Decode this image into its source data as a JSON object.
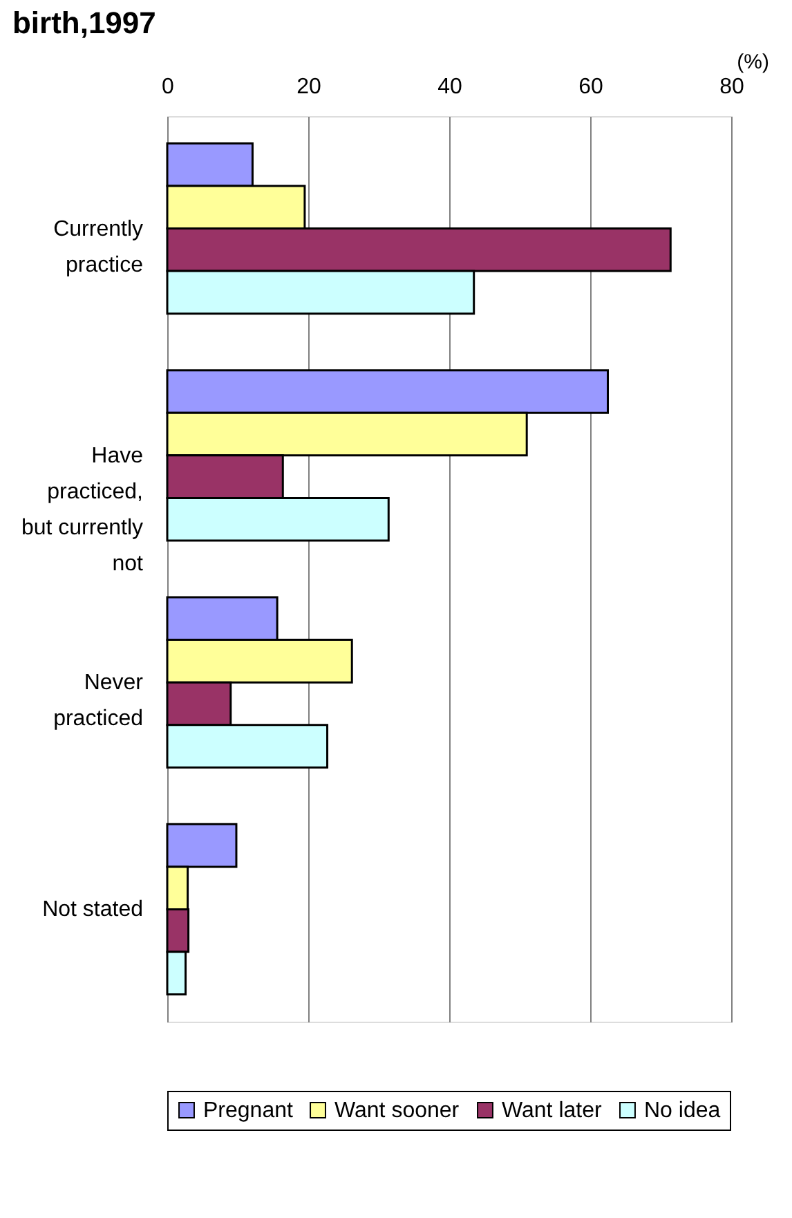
{
  "chart_data": {
    "type": "bar",
    "orientation": "horizontal",
    "title": "birth,1997",
    "xlabel": "(%)",
    "categories": [
      "Currently practice",
      "Have practiced, but currently not",
      "Never practiced",
      "Not stated"
    ],
    "series": [
      {
        "name": "Pregnant",
        "color": "#9999ff",
        "values": [
          12.1,
          62.5,
          15.6,
          9.8
        ]
      },
      {
        "name": "Want sooner",
        "color": "#ffff99",
        "values": [
          19.5,
          51.0,
          26.2,
          2.9
        ]
      },
      {
        "name": "Want later",
        "color": "#993366",
        "values": [
          71.4,
          16.4,
          9.0,
          3.0
        ]
      },
      {
        "name": "No idea",
        "color": "#ccffff",
        "values": [
          43.5,
          31.4,
          22.7,
          2.6
        ]
      }
    ],
    "xlim": [
      0,
      80
    ],
    "xticks": [
      0,
      20,
      40,
      60,
      80
    ],
    "grid": "x",
    "legend": "bottom"
  }
}
